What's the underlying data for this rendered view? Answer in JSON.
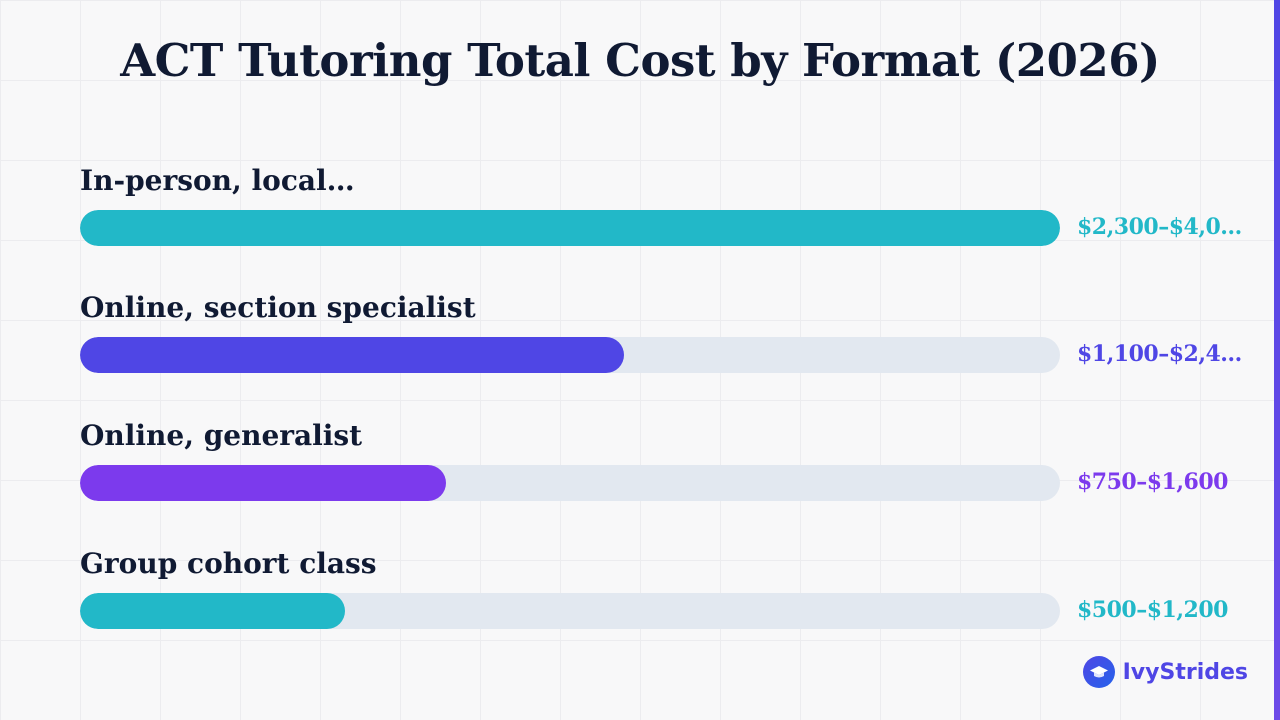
{
  "colors": {
    "teal": "#22b8c8",
    "indigo": "#4f46e5",
    "violet": "#7c3aed",
    "track": "#e2e8f0",
    "title": "#101a33"
  },
  "chart_data": {
    "type": "bar",
    "orientation": "horizontal",
    "title": "ACT Tutoring Total Cost by Format (2026)",
    "xlabel": "",
    "ylabel": "",
    "grid": false,
    "legend": "none",
    "xlim": [
      0,
      1
    ],
    "categories": [
      "In-person, local…",
      "Online, section specialist",
      "Online, generalist",
      "Group cohort class"
    ],
    "values": [
      1.0,
      0.555,
      0.373,
      0.27
    ],
    "value_labels": [
      "$2,300–$4,0…",
      "$1,100–$2,4…",
      "$750–$1,600",
      "$500–$1,200"
    ],
    "bar_colors": [
      "#22b8c8",
      "#4f46e5",
      "#7c3aed",
      "#22b8c8"
    ]
  },
  "brand": {
    "name": "IvyStrides",
    "icon": "graduation-cap-icon"
  }
}
